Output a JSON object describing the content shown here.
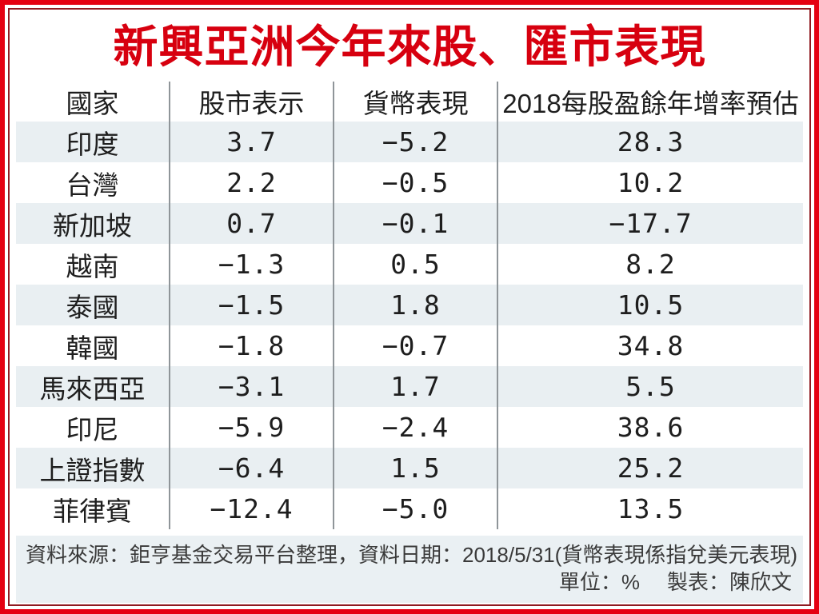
{
  "title": "新興亞洲今年來股、匯市表現",
  "table": {
    "headers": {
      "country": "國家",
      "stock": "股市表示",
      "currency": "貨幣表現",
      "eps": "2018每股盈餘年增率預估"
    },
    "rows": [
      {
        "country": "印度",
        "stock": "3.7",
        "currency": "−5.2",
        "eps": "28.3"
      },
      {
        "country": "台灣",
        "stock": "2.2",
        "currency": "−0.5",
        "eps": "10.2"
      },
      {
        "country": "新加坡",
        "stock": "0.7",
        "currency": "−0.1",
        "eps": "−17.7"
      },
      {
        "country": "越南",
        "stock": "−1.3",
        "currency": "0.5",
        "eps": "8.2"
      },
      {
        "country": "泰國",
        "stock": "−1.5",
        "currency": "1.8",
        "eps": "10.5"
      },
      {
        "country": "韓國",
        "stock": "−1.8",
        "currency": "−0.7",
        "eps": "34.8"
      },
      {
        "country": "馬來西亞",
        "stock": "−3.1",
        "currency": "1.7",
        "eps": "5.5"
      },
      {
        "country": "印尼",
        "stock": "−5.9",
        "currency": "−2.4",
        "eps": "38.6"
      },
      {
        "country": "上證指數",
        "stock": "−6.4",
        "currency": "1.5",
        "eps": "25.2"
      },
      {
        "country": "菲律賓",
        "stock": "−12.4",
        "currency": "−5.0",
        "eps": "13.5"
      }
    ]
  },
  "footer": {
    "source_line": "資料來源：鉅亨基金交易平台整理，資料日期：2018/5/31(貨幣表現係指兌美元表現)",
    "unit_label": "單位：%",
    "credit_label": "製表：陳欣文"
  },
  "colors": {
    "outer_border": "#e50011",
    "inner_border": "#901b21",
    "title_red": "#d7000f",
    "row_stripe": "#e9eff2",
    "footer_bg": "#eaf0f3",
    "divider_grey": "#8f9599"
  },
  "chart_data": {
    "type": "table",
    "title": "新興亞洲今年來股、匯市表現",
    "columns": [
      "國家",
      "股市表示",
      "貨幣表現",
      "2018每股盈餘年增率預估"
    ],
    "rows": [
      [
        "印度",
        3.7,
        -5.2,
        28.3
      ],
      [
        "台灣",
        2.2,
        -0.5,
        10.2
      ],
      [
        "新加坡",
        0.7,
        -0.1,
        -17.7
      ],
      [
        "越南",
        -1.3,
        0.5,
        8.2
      ],
      [
        "泰國",
        -1.5,
        1.8,
        10.5
      ],
      [
        "韓國",
        -1.8,
        -0.7,
        34.8
      ],
      [
        "馬來西亞",
        -3.1,
        1.7,
        5.5
      ],
      [
        "印尼",
        -5.9,
        -2.4,
        38.6
      ],
      [
        "上證指數",
        -6.4,
        1.5,
        25.2
      ],
      [
        "菲律賓",
        -12.4,
        -5.0,
        13.5
      ]
    ],
    "unit": "%",
    "source": "鉅亨基金交易平台整理",
    "data_date": "2018/5/31",
    "note": "貨幣表現係指兌美元表現",
    "credit": "陳欣文"
  }
}
